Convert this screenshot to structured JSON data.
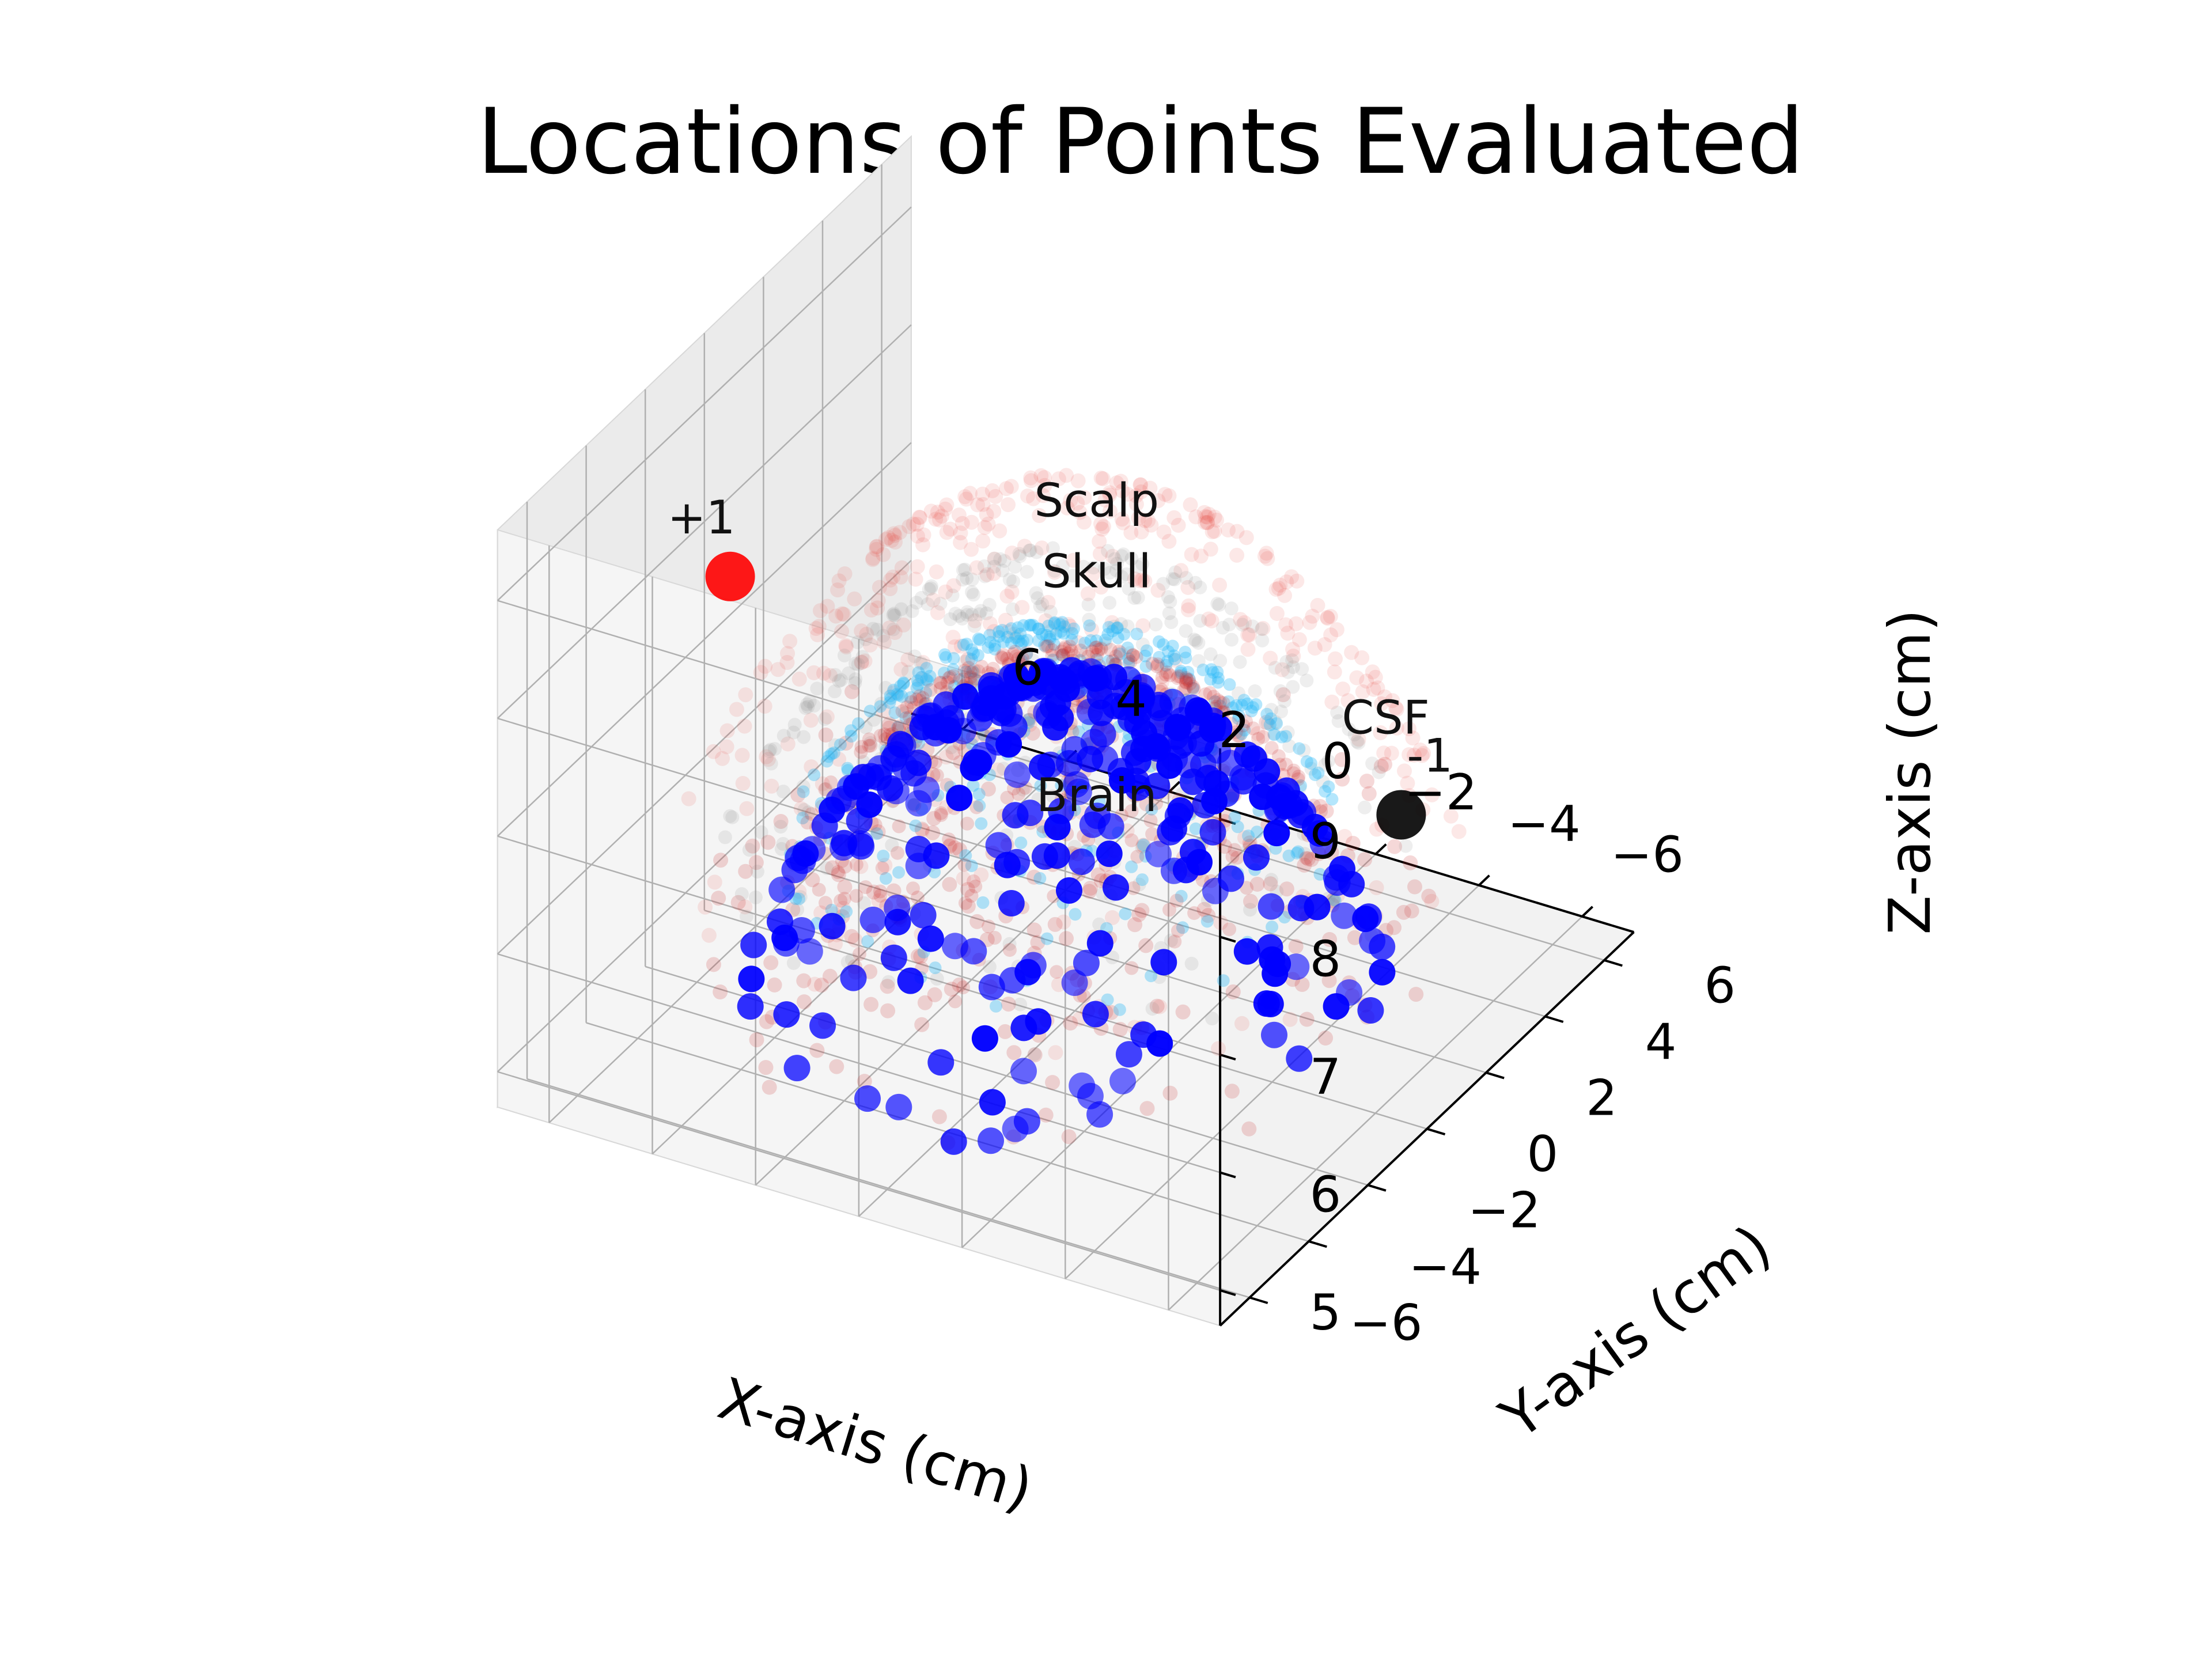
{
  "chart_data": {
    "type": "scatter",
    "title": "Locations of Points Evaluated",
    "xlabel": "X-axis (cm)",
    "ylabel": "Y-axis (cm)",
    "zlabel": "Z-axis (cm)",
    "xlim": [
      -7,
      7
    ],
    "ylim": [
      -7,
      7
    ],
    "zlim": [
      4.7,
      9.6
    ],
    "x_ticks": [
      {
        "value": 6,
        "label": "6"
      },
      {
        "value": 4,
        "label": "4"
      },
      {
        "value": 2,
        "label": "2"
      },
      {
        "value": 0,
        "label": "0"
      },
      {
        "value": -2,
        "label": "−2"
      },
      {
        "value": -4,
        "label": "−4"
      },
      {
        "value": -6,
        "label": "−6"
      }
    ],
    "y_ticks": [
      {
        "value": -6,
        "label": "−6"
      },
      {
        "value": -4,
        "label": "−4"
      },
      {
        "value": -2,
        "label": "−2"
      },
      {
        "value": 0,
        "label": "0"
      },
      {
        "value": 2,
        "label": "2"
      },
      {
        "value": 4,
        "label": "4"
      },
      {
        "value": 6,
        "label": "6"
      }
    ],
    "z_ticks": [
      {
        "value": 5,
        "label": "5"
      },
      {
        "value": 6,
        "label": "6"
      },
      {
        "value": 7,
        "label": "7"
      },
      {
        "value": 8,
        "label": "8"
      },
      {
        "value": 9,
        "label": "9"
      }
    ],
    "grid": true,
    "layers": [
      {
        "name": "Scalp",
        "shell_radius": 9.0,
        "color": "#e8453c",
        "alpha": 0.12
      },
      {
        "name": "Skull",
        "shell_radius": 8.4,
        "color": "#888888",
        "alpha": 0.14
      },
      {
        "name": "CSF",
        "shell_radius": 7.8,
        "color": "#29b6f6",
        "alpha": 0.35
      },
      {
        "name": "Brain",
        "shell_radius": 7.6,
        "color": "#c62828",
        "alpha": 0.18
      }
    ],
    "electrodes": [
      {
        "label": "+1",
        "x": 6.5,
        "y": 0.0,
        "z": 7.6,
        "color": "#ff0000"
      },
      {
        "label": "-1",
        "x": -6.5,
        "y": 0.0,
        "z": 7.3,
        "color": "#000000"
      }
    ],
    "evaluated_points": {
      "color": "#0000ff",
      "shell_radius": 7.4,
      "z_min": 5.0
    }
  }
}
